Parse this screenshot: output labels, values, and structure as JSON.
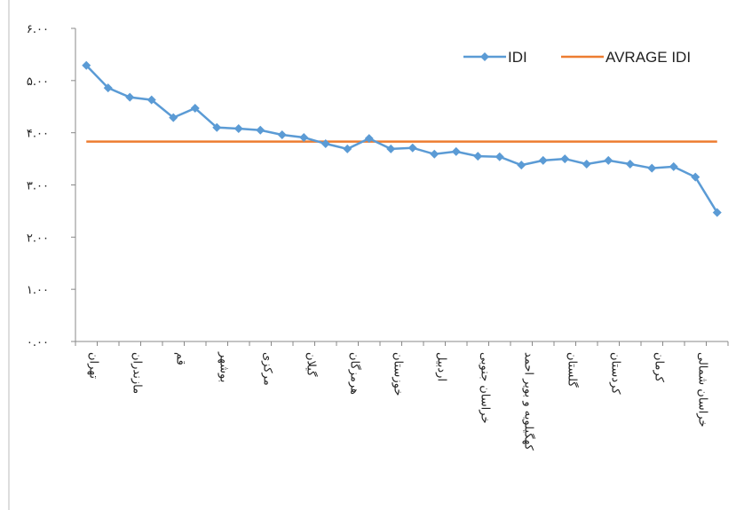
{
  "chart_data": {
    "type": "line",
    "categories": [
      "تهران",
      null,
      "مازندران",
      null,
      "قم",
      null,
      "بوشهر",
      null,
      "مرکزی",
      null,
      "گیلان",
      null,
      "هرمزگان",
      null,
      "خوزستان",
      null,
      "اردبیل",
      null,
      "خراسان جنوبی",
      null,
      "کهگیلویه و بویر احمد",
      null,
      "گلستان",
      null,
      "کردستان",
      null,
      "کرمان",
      null,
      "خراسان شمالی",
      null
    ],
    "series": [
      {
        "name": "IDI",
        "color": "#5b9bd5",
        "values": [
          5.29,
          4.86,
          4.68,
          4.63,
          4.29,
          4.47,
          4.1,
          4.08,
          4.05,
          3.96,
          3.91,
          3.79,
          3.69,
          3.89,
          3.69,
          3.71,
          3.59,
          3.64,
          3.55,
          3.54,
          3.38,
          3.47,
          3.5,
          3.4,
          3.47,
          3.4,
          3.32,
          3.35,
          3.15,
          2.47
        ]
      },
      {
        "name": "AVRAGE IDI",
        "color": "#ed7d31",
        "values": [
          3.83,
          3.83,
          3.83,
          3.83,
          3.83,
          3.83,
          3.83,
          3.83,
          3.83,
          3.83,
          3.83,
          3.83,
          3.83,
          3.83,
          3.83,
          3.83,
          3.83,
          3.83,
          3.83,
          3.83,
          3.83,
          3.83,
          3.83,
          3.83,
          3.83,
          3.83,
          3.83,
          3.83,
          3.83,
          3.83
        ]
      }
    ],
    "ylim": [
      0,
      6
    ],
    "yticks": [
      {
        "value": 0,
        "label": "۰.۰۰"
      },
      {
        "value": 1,
        "label": "۱.۰۰"
      },
      {
        "value": 2,
        "label": "۲.۰۰"
      },
      {
        "value": 3,
        "label": "۳.۰۰"
      },
      {
        "value": 4,
        "label": "۴.۰۰"
      },
      {
        "value": 5,
        "label": "۵.۰۰"
      },
      {
        "value": 6,
        "label": "۶.۰۰"
      }
    ],
    "legend": "top-right"
  }
}
